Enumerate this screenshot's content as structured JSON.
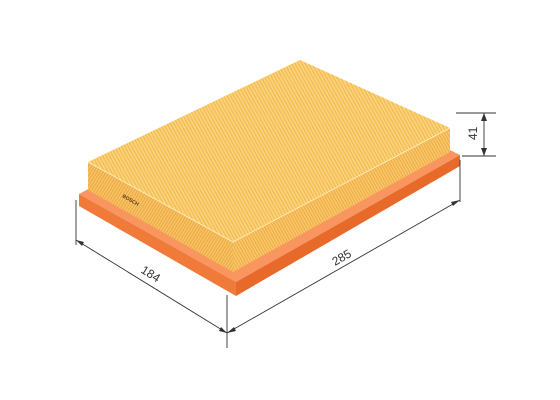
{
  "product": {
    "brand": "BOSCH",
    "colors": {
      "pleats": "#f7c45c",
      "pleats_highlight": "#fbd98a",
      "pleats_shadow": "#e8a93a",
      "frame": "#f58a4a",
      "frame_dark": "#e36a2a",
      "frame_light": "#fbb08a",
      "dimension_line": "#333333"
    }
  },
  "dimensions": {
    "length": "285",
    "width": "184",
    "height": "41"
  }
}
